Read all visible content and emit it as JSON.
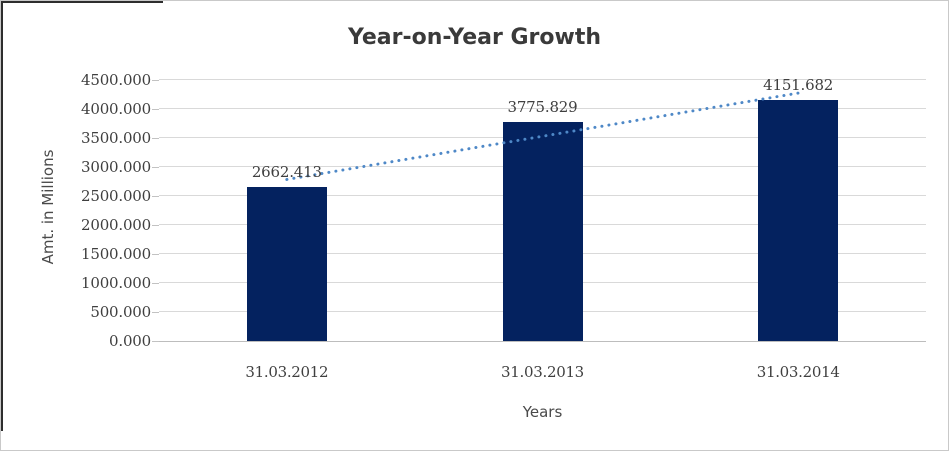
{
  "chart_data": {
    "type": "bar",
    "title": "Year-on-Year Growth",
    "xlabel": "Years",
    "ylabel": "Amt. in Millions",
    "categories": [
      "31.03.2012",
      "31.03.2013",
      "31.03.2014"
    ],
    "values": [
      2662.413,
      3775.829,
      4151.682
    ],
    "data_labels": [
      "2662.413",
      "3775.829",
      "4151.682"
    ],
    "ylim": [
      0,
      4500
    ],
    "y_tick_step": 500,
    "y_tick_labels": [
      "0.000",
      "500.000",
      "1000.000",
      "1500.000",
      "2000.000",
      "2500.000",
      "3000.000",
      "3500.000",
      "4000.000",
      "4500.000"
    ],
    "grid": true,
    "legend": "none",
    "trendline": {
      "type": "linear",
      "style": "dotted"
    },
    "colors": {
      "bar": "#04225f",
      "trendline": "#4e88c7",
      "gridline": "#d9d9d9",
      "axis_line": "#bdbdbd",
      "text": "#3f3f3f"
    }
  }
}
